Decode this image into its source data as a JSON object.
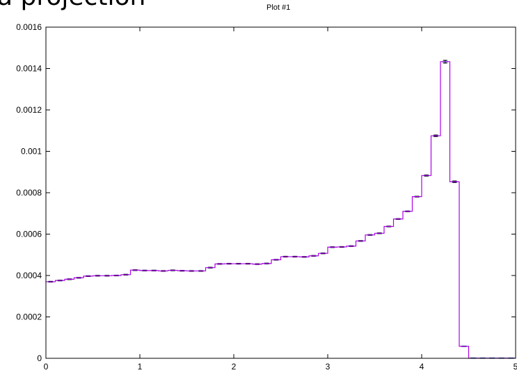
{
  "header": {
    "heading": "a projection"
  },
  "colors": {
    "histogram": "#b000e8",
    "error_bar": "#1f9e96",
    "axis": "#000000"
  },
  "chart_data": {
    "type": "line",
    "style": "histogram-steps",
    "title": "Plot #1",
    "xlabel": "",
    "ylabel": "",
    "xlim": [
      0,
      5
    ],
    "ylim": [
      0,
      0.0016
    ],
    "grid": false,
    "legend": "none",
    "x_ticks": [
      "0",
      "1",
      "2",
      "3",
      "4",
      "5"
    ],
    "y_ticks": [
      "0",
      "0.0002",
      "0.0004",
      "0.0006",
      "0.0008",
      "0.001",
      "0.0012",
      "0.0014",
      "0.0016"
    ],
    "bin_edges": [
      0,
      0.1,
      0.2,
      0.3,
      0.4,
      0.5,
      0.6,
      0.7,
      0.8,
      0.9,
      1.0,
      1.1,
      1.2,
      1.3,
      1.4,
      1.5,
      1.6,
      1.7,
      1.8,
      1.9,
      2.0,
      2.1,
      2.2,
      2.3,
      2.4,
      2.5,
      2.6,
      2.7,
      2.8,
      2.9,
      3.0,
      3.1,
      3.2,
      3.3,
      3.4,
      3.5,
      3.6,
      3.7,
      3.8,
      3.9,
      4.0,
      4.1,
      4.2,
      4.3,
      4.4,
      4.5,
      4.6,
      4.7,
      4.8,
      4.9,
      5.0
    ],
    "series": [
      {
        "values": [
          0.00037,
          0.000376,
          0.000382,
          0.000389,
          0.000397,
          0.000399,
          0.000399,
          0.0004,
          0.000404,
          0.000426,
          0.000424,
          0.000424,
          0.000422,
          0.000425,
          0.000423,
          0.000422,
          0.000422,
          0.000438,
          0.000456,
          0.000457,
          0.000457,
          0.000457,
          0.000455,
          0.000458,
          0.000476,
          0.000491,
          0.000491,
          0.00049,
          0.000495,
          0.000507,
          0.000537,
          0.000538,
          0.000542,
          0.000567,
          0.000596,
          0.000604,
          0.000637,
          0.000673,
          0.00071,
          0.000781,
          0.000883,
          0.001075,
          0.001433,
          0.000853,
          5.8e-05,
          1e-06,
          1e-06,
          1e-06,
          1e-06,
          1e-06
        ],
        "errors": [
          2e-06,
          2e-06,
          2e-06,
          2e-06,
          2e-06,
          2e-06,
          2e-06,
          2e-06,
          2e-06,
          2e-06,
          2e-06,
          2e-06,
          2e-06,
          2e-06,
          2e-06,
          2e-06,
          2e-06,
          2e-06,
          2e-06,
          2e-06,
          2e-06,
          2e-06,
          2e-06,
          2e-06,
          2e-06,
          2e-06,
          2e-06,
          2e-06,
          2e-06,
          2e-06,
          2e-06,
          2e-06,
          2e-06,
          2e-06,
          2e-06,
          2e-06,
          2e-06,
          2e-06,
          2e-06,
          2e-06,
          3e-06,
          4e-06,
          7e-06,
          4e-06,
          1e-06,
          0.0,
          0.0,
          0.0,
          0.0,
          0.0
        ]
      }
    ]
  }
}
